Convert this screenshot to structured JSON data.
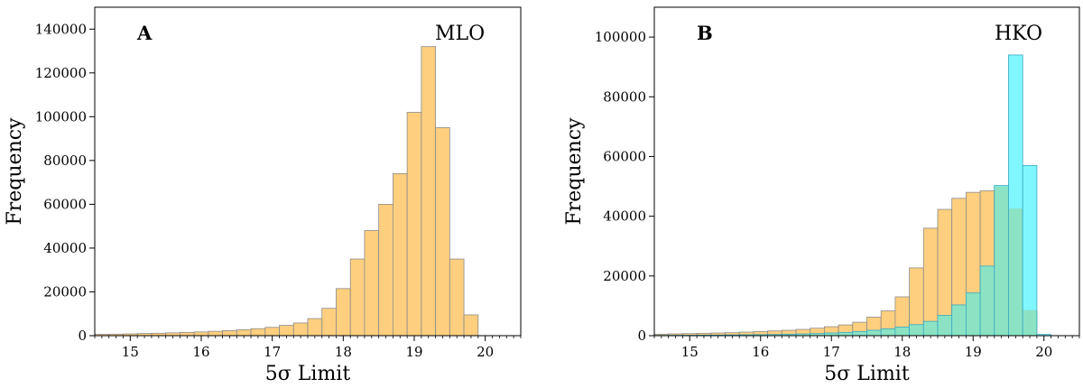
{
  "colors": {
    "orange_fill": "#fdcf7f",
    "orange_edge": "#8c8c8c",
    "cyan_fill": "#80f7ff",
    "cyan_edge": "#3aa8c0",
    "overlap_fill": "#8be3c4"
  },
  "chart_data": [
    {
      "type": "bar",
      "panel": "A",
      "site": "MLO",
      "xlabel": "5σ Limit",
      "ylabel": "Frequency",
      "xlim": [
        14.5,
        20.5
      ],
      "ylim": [
        0,
        150000
      ],
      "xticks": [
        15,
        16,
        17,
        18,
        19,
        20
      ],
      "yticks": [
        0,
        20000,
        40000,
        60000,
        80000,
        100000,
        120000,
        140000
      ],
      "bin_width": 0.2,
      "series": [
        {
          "color": "orange",
          "bins": [
            {
              "x0": 14.5,
              "v": 600
            },
            {
              "x0": 14.7,
              "v": 700
            },
            {
              "x0": 14.9,
              "v": 800
            },
            {
              "x0": 15.1,
              "v": 1000
            },
            {
              "x0": 15.3,
              "v": 1100
            },
            {
              "x0": 15.5,
              "v": 1300
            },
            {
              "x0": 15.7,
              "v": 1500
            },
            {
              "x0": 15.9,
              "v": 1700
            },
            {
              "x0": 16.1,
              "v": 2000
            },
            {
              "x0": 16.3,
              "v": 2300
            },
            {
              "x0": 16.5,
              "v": 2700
            },
            {
              "x0": 16.7,
              "v": 3200
            },
            {
              "x0": 16.9,
              "v": 3800
            },
            {
              "x0": 17.1,
              "v": 4700
            },
            {
              "x0": 17.3,
              "v": 5800
            },
            {
              "x0": 17.5,
              "v": 7800
            },
            {
              "x0": 17.7,
              "v": 12500
            },
            {
              "x0": 17.9,
              "v": 21500
            },
            {
              "x0": 18.1,
              "v": 35000
            },
            {
              "x0": 18.3,
              "v": 48000
            },
            {
              "x0": 18.5,
              "v": 60000
            },
            {
              "x0": 18.7,
              "v": 74000
            },
            {
              "x0": 18.9,
              "v": 102000
            },
            {
              "x0": 19.1,
              "v": 132000
            },
            {
              "x0": 19.3,
              "v": 95000
            },
            {
              "x0": 19.5,
              "v": 35000
            },
            {
              "x0": 19.7,
              "v": 9500
            }
          ]
        }
      ]
    },
    {
      "type": "bar",
      "panel": "B",
      "site": "HKO",
      "xlabel": "5σ Limit",
      "ylabel": "Frequency",
      "xlim": [
        14.5,
        20.5
      ],
      "ylim": [
        0,
        110000
      ],
      "xticks": [
        15,
        16,
        17,
        18,
        19,
        20
      ],
      "yticks": [
        0,
        20000,
        40000,
        60000,
        80000,
        100000
      ],
      "bin_width": 0.2,
      "series": [
        {
          "color": "orange",
          "bins": [
            {
              "x0": 14.5,
              "v": 500
            },
            {
              "x0": 14.7,
              "v": 600
            },
            {
              "x0": 14.9,
              "v": 700
            },
            {
              "x0": 15.1,
              "v": 800
            },
            {
              "x0": 15.3,
              "v": 900
            },
            {
              "x0": 15.5,
              "v": 1000
            },
            {
              "x0": 15.7,
              "v": 1200
            },
            {
              "x0": 15.9,
              "v": 1400
            },
            {
              "x0": 16.1,
              "v": 1600
            },
            {
              "x0": 16.3,
              "v": 1800
            },
            {
              "x0": 16.5,
              "v": 2100
            },
            {
              "x0": 16.7,
              "v": 2500
            },
            {
              "x0": 16.9,
              "v": 3000
            },
            {
              "x0": 17.1,
              "v": 3600
            },
            {
              "x0": 17.3,
              "v": 4500
            },
            {
              "x0": 17.5,
              "v": 6200
            },
            {
              "x0": 17.7,
              "v": 8300
            },
            {
              "x0": 17.9,
              "v": 13000
            },
            {
              "x0": 18.1,
              "v": 22700
            },
            {
              "x0": 18.3,
              "v": 36000
            },
            {
              "x0": 18.5,
              "v": 42300
            },
            {
              "x0": 18.7,
              "v": 46000
            },
            {
              "x0": 18.9,
              "v": 48000
            },
            {
              "x0": 19.1,
              "v": 48500
            },
            {
              "x0": 19.3,
              "v": 50000
            },
            {
              "x0": 19.5,
              "v": 42500
            },
            {
              "x0": 19.7,
              "v": 8500
            }
          ]
        },
        {
          "color": "cyan",
          "bins": [
            {
              "x0": 14.5,
              "v": 100
            },
            {
              "x0": 14.7,
              "v": 120
            },
            {
              "x0": 14.9,
              "v": 150
            },
            {
              "x0": 15.1,
              "v": 180
            },
            {
              "x0": 15.3,
              "v": 200
            },
            {
              "x0": 15.5,
              "v": 250
            },
            {
              "x0": 15.7,
              "v": 300
            },
            {
              "x0": 15.9,
              "v": 350
            },
            {
              "x0": 16.1,
              "v": 400
            },
            {
              "x0": 16.3,
              "v": 500
            },
            {
              "x0": 16.5,
              "v": 600
            },
            {
              "x0": 16.7,
              "v": 700
            },
            {
              "x0": 16.9,
              "v": 900
            },
            {
              "x0": 17.1,
              "v": 1100
            },
            {
              "x0": 17.3,
              "v": 1400
            },
            {
              "x0": 17.5,
              "v": 1800
            },
            {
              "x0": 17.7,
              "v": 2300
            },
            {
              "x0": 17.9,
              "v": 2900
            },
            {
              "x0": 18.1,
              "v": 3700
            },
            {
              "x0": 18.3,
              "v": 4800
            },
            {
              "x0": 18.5,
              "v": 6800
            },
            {
              "x0": 18.7,
              "v": 10300
            },
            {
              "x0": 18.9,
              "v": 14300
            },
            {
              "x0": 19.1,
              "v": 23300
            },
            {
              "x0": 19.3,
              "v": 50300
            },
            {
              "x0": 19.5,
              "v": 94000
            },
            {
              "x0": 19.7,
              "v": 57000
            },
            {
              "x0": 19.9,
              "v": 400
            }
          ]
        }
      ]
    }
  ]
}
